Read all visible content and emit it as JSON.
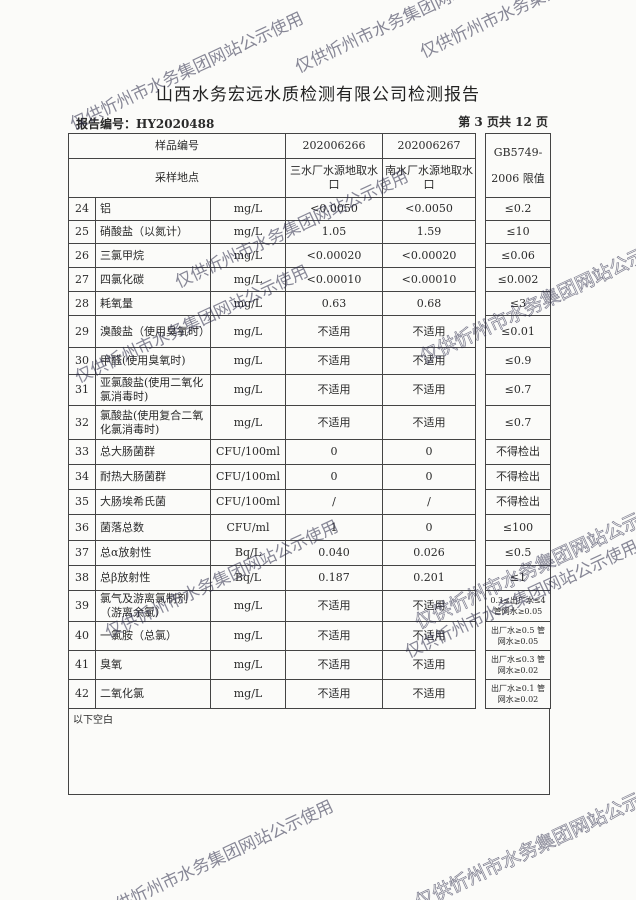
{
  "title": "山西水务宏远水质检测有限公司检测报告",
  "report_no": "报告编号：HY2020488",
  "page_info": "第 3 页共 12 页",
  "header": {
    "sample_no_label": "样品编号",
    "sample_ids": [
      "202006266",
      "202006267"
    ],
    "site_label": "采样地点",
    "sites": [
      "三水厂水源地取水口",
      "南水厂水源地取水口"
    ],
    "standard_label_1": "GB5749-",
    "standard_label_2": "2006 限值"
  },
  "rows": [
    {
      "no": "24",
      "item": "铝",
      "unit": "mg/L",
      "v1": "<0.0050",
      "v2": "<0.0050",
      "limit": "≤0.2"
    },
    {
      "no": "25",
      "item": "硝酸盐（以氮计）",
      "unit": "mg/L",
      "v1": "1.05",
      "v2": "1.59",
      "limit": "≤10"
    },
    {
      "no": "26",
      "item": "三氯甲烷",
      "unit": "mg/L",
      "v1": "<0.00020",
      "v2": "<0.00020",
      "limit": "≤0.06"
    },
    {
      "no": "27",
      "item": "四氯化碳",
      "unit": "mg/L",
      "v1": "<0.00010",
      "v2": "<0.00010",
      "limit": "≤0.002"
    },
    {
      "no": "28",
      "item": "耗氧量",
      "unit": "mg/L",
      "v1": "0.63",
      "v2": "0.68",
      "limit": "≤3"
    },
    {
      "no": "29",
      "item": "溴酸盐（使用臭氧时）",
      "unit": "mg/L",
      "v1": "不适用",
      "v2": "不适用",
      "limit": "≤0.01"
    },
    {
      "no": "30",
      "item": "甲醛(使用臭氧时)",
      "unit": "mg/L",
      "v1": "不适用",
      "v2": "不适用",
      "limit": "≤0.9"
    },
    {
      "no": "31",
      "item": "亚氯酸盐(使用二氧化氯消毒时)",
      "unit": "mg/L",
      "v1": "不适用",
      "v2": "不适用",
      "limit": "≤0.7"
    },
    {
      "no": "32",
      "item": "氯酸盐(使用复合二氧化氯消毒时)",
      "unit": "mg/L",
      "v1": "不适用",
      "v2": "不适用",
      "limit": "≤0.7"
    },
    {
      "no": "33",
      "item": "总大肠菌群",
      "unit": "CFU/100ml",
      "v1": "0",
      "v2": "0",
      "limit": "不得检出"
    },
    {
      "no": "34",
      "item": "耐热大肠菌群",
      "unit": "CFU/100ml",
      "v1": "0",
      "v2": "0",
      "limit": "不得检出"
    },
    {
      "no": "35",
      "item": "大肠埃希氏菌",
      "unit": "CFU/100ml",
      "v1": "/",
      "v2": "/",
      "limit": "不得检出"
    },
    {
      "no": "36",
      "item": "菌落总数",
      "unit": "CFU/ml",
      "v1": "1",
      "v2": "0",
      "limit": "≤100"
    },
    {
      "no": "37",
      "item": "总α放射性",
      "unit": "Bq/L",
      "v1": "0.040",
      "v2": "0.026",
      "limit": "≤0.5"
    },
    {
      "no": "38",
      "item": "总β放射性",
      "unit": "Bq/L",
      "v1": "0.187",
      "v2": "0.201",
      "limit": "≤1"
    },
    {
      "no": "39",
      "item": "氯气及游离氯制剂（游离余氯）",
      "unit": "mg/L",
      "v1": "不适用",
      "v2": "不适用",
      "limit": "0.3≤出厂水≤4 管网水≥0.05"
    },
    {
      "no": "40",
      "item": "一氯胺（总氯）",
      "unit": "mg/L",
      "v1": "不适用",
      "v2": "不适用",
      "limit": "出厂水≥0.5 管网水≥0.05"
    },
    {
      "no": "41",
      "item": "臭氧",
      "unit": "mg/L",
      "v1": "不适用",
      "v2": "不适用",
      "limit": "出厂水≤0.3 管网水≥0.02"
    },
    {
      "no": "42",
      "item": "二氧化氯",
      "unit": "mg/L",
      "v1": "不适用",
      "v2": "不适用",
      "limit": "出厂水≥0.1 管网水≥0.02"
    }
  ],
  "blank_note": "以下空白",
  "watermark": "仅供忻州市水务集团网站公示使用"
}
